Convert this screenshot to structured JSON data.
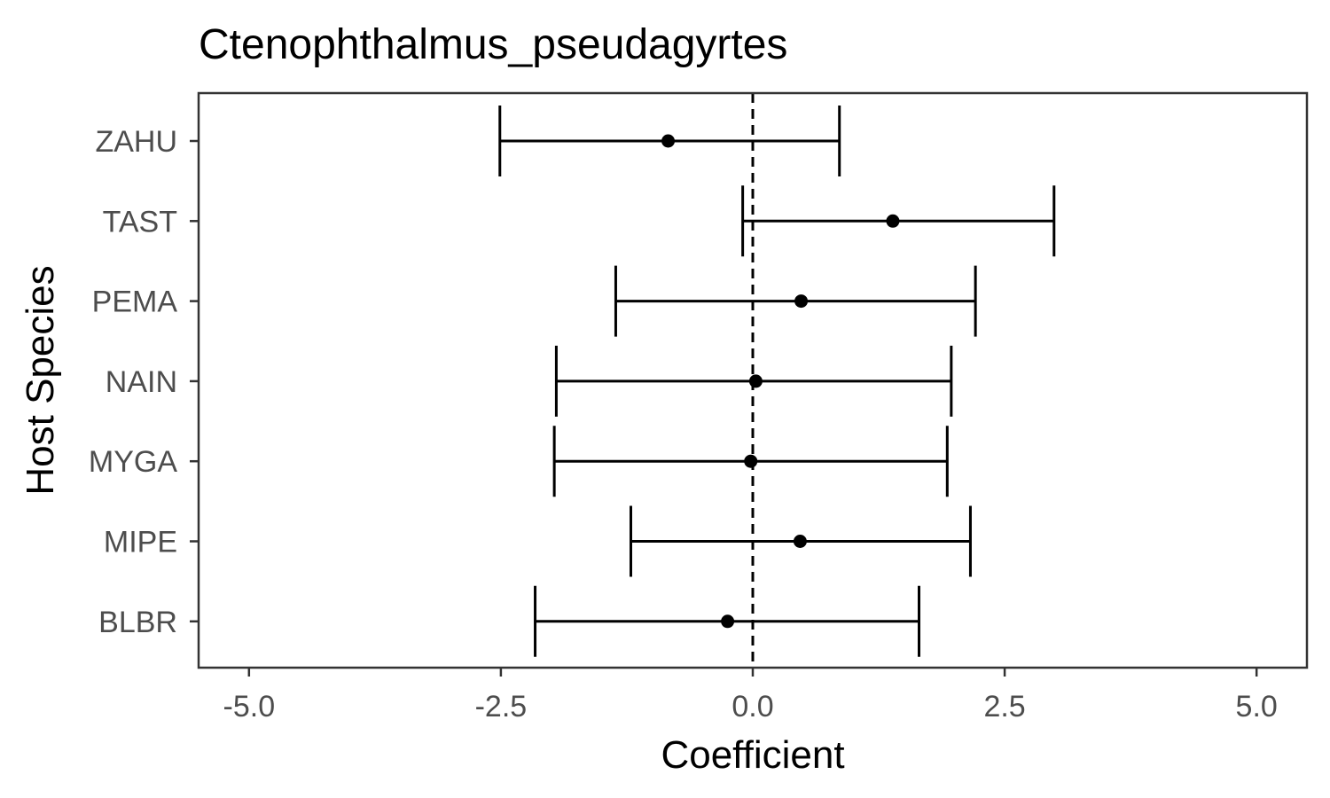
{
  "chart_data": {
    "type": "forest",
    "title": "Ctenophthalmus_pseudagyrtes",
    "xlabel": "Coefficient",
    "ylabel": "Host Species",
    "xlim": [
      -5.5,
      5.5
    ],
    "x_ticks": [
      -5.0,
      -2.5,
      0.0,
      2.5,
      5.0
    ],
    "x_tick_labels": [
      "-5.0",
      "-2.5",
      "0.0",
      "2.5",
      "5.0"
    ],
    "reference_line": 0.0,
    "grid": false,
    "categories": [
      "ZAHU",
      "TAST",
      "PEMA",
      "NAIN",
      "MYGA",
      "MIPE",
      "BLBR"
    ],
    "estimates": [
      -0.84,
      1.39,
      0.48,
      0.03,
      -0.02,
      0.47,
      -0.25
    ],
    "lower": [
      -2.51,
      -0.1,
      -1.36,
      -1.95,
      -1.97,
      -1.21,
      -2.16
    ],
    "upper": [
      0.86,
      2.99,
      2.21,
      1.97,
      1.93,
      2.16,
      1.65
    ],
    "colors": {
      "points": "#000000",
      "bars": "#000000",
      "reference_line": "#000000",
      "panel_border": "#333333",
      "tick_text": "#4d4d4d"
    }
  }
}
